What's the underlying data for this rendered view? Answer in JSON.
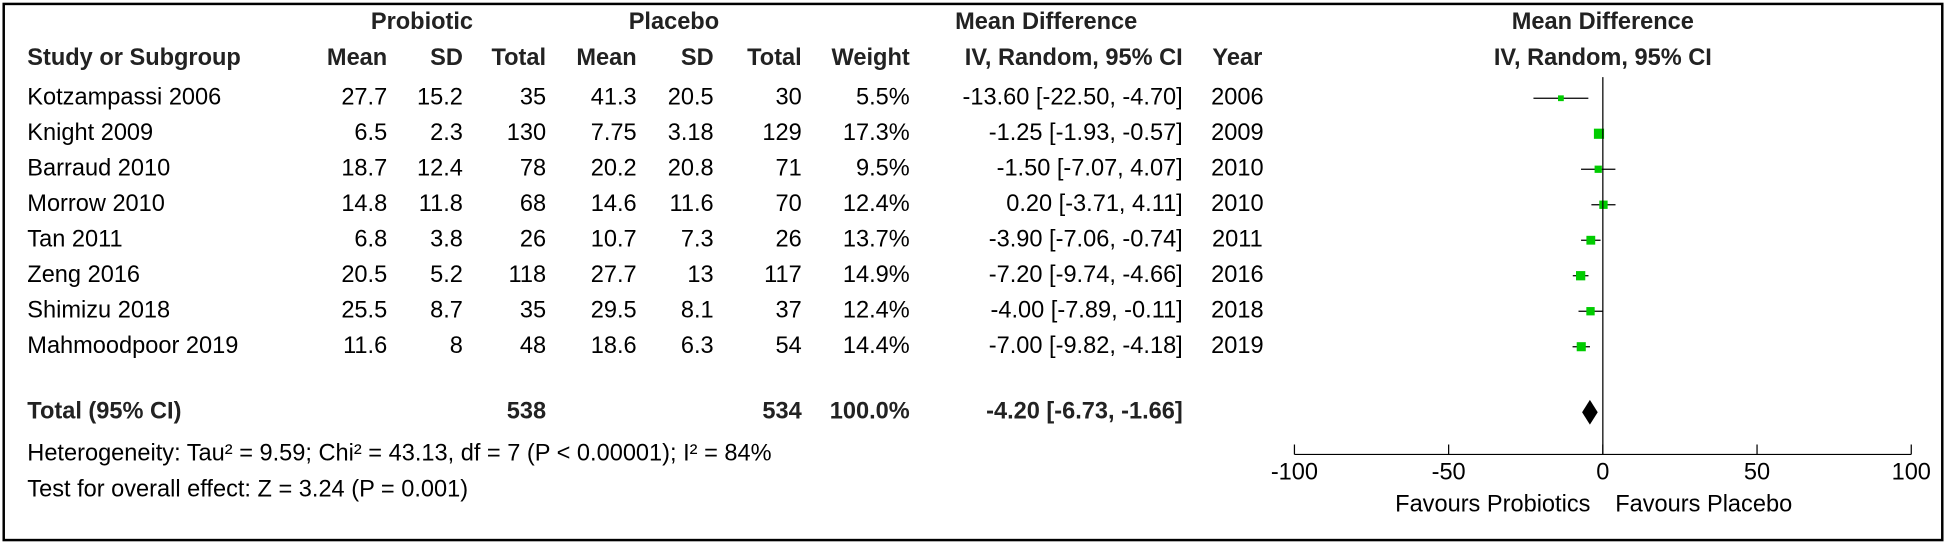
{
  "chart_data": {
    "type": "forest",
    "group_headers": [
      "Probiotic",
      "Placebo",
      "Mean Difference",
      "Mean Difference"
    ],
    "columns": [
      "Study or Subgroup",
      "Mean",
      "SD",
      "Total",
      "Mean",
      "SD",
      "Total",
      "Weight",
      "IV, Random, 95% CI",
      "Year",
      "IV, Random, 95% CI"
    ],
    "studies": [
      {
        "study": "Kotzampassi 2006",
        "probiotic": [
          27.7,
          15.2,
          35
        ],
        "placebo": [
          41.3,
          20.5,
          30
        ],
        "weight": 5.5,
        "weight_label": "5.5%",
        "md": -13.6,
        "ci": [
          -22.5,
          -4.7
        ],
        "md_label": "-13.60 [-22.50, -4.70]",
        "year": 2006
      },
      {
        "study": "Knight 2009",
        "probiotic": [
          6.5,
          2.3,
          130
        ],
        "placebo": [
          7.75,
          3.18,
          129
        ],
        "weight": 17.3,
        "weight_label": "17.3%",
        "md": -1.25,
        "ci": [
          -1.93,
          -0.57
        ],
        "md_label": "-1.25 [-1.93, -0.57]",
        "year": 2009
      },
      {
        "study": "Barraud 2010",
        "probiotic": [
          18.7,
          12.4,
          78
        ],
        "placebo": [
          20.2,
          20.8,
          71
        ],
        "weight": 9.5,
        "weight_label": "9.5%",
        "md": -1.5,
        "ci": [
          -7.07,
          4.07
        ],
        "md_label": "-1.50 [-7.07, 4.07]",
        "year": 2010
      },
      {
        "study": "Morrow  2010",
        "probiotic": [
          14.8,
          11.8,
          68
        ],
        "placebo": [
          14.6,
          11.6,
          70
        ],
        "weight": 12.4,
        "weight_label": "12.4%",
        "md": 0.2,
        "ci": [
          -3.71,
          4.11
        ],
        "md_label": "0.20 [-3.71, 4.11]",
        "year": 2010
      },
      {
        "study": "Tan 2011",
        "probiotic": [
          6.8,
          3.8,
          26
        ],
        "placebo": [
          10.7,
          7.3,
          26
        ],
        "weight": 13.7,
        "weight_label": "13.7%",
        "md": -3.9,
        "ci": [
          -7.06,
          -0.74
        ],
        "md_label": "-3.90 [-7.06, -0.74]",
        "year": 2011
      },
      {
        "study": "Zeng 2016",
        "probiotic": [
          20.5,
          5.2,
          118
        ],
        "placebo": [
          27.7,
          13,
          117
        ],
        "weight": 14.9,
        "weight_label": "14.9%",
        "md": -7.2,
        "ci": [
          -9.74,
          -4.66
        ],
        "md_label": "-7.20 [-9.74, -4.66]",
        "year": 2016
      },
      {
        "study": "Shimizu 2018",
        "probiotic": [
          25.5,
          8.7,
          35
        ],
        "placebo": [
          29.5,
          8.1,
          37
        ],
        "weight": 12.4,
        "weight_label": "12.4%",
        "md": -4.0,
        "ci": [
          -7.89,
          -0.11
        ],
        "md_label": "-4.00 [-7.89, -0.11]",
        "year": 2018
      },
      {
        "study": "Mahmoodpoor 2019",
        "probiotic": [
          11.6,
          8,
          48
        ],
        "placebo": [
          18.6,
          6.3,
          54
        ],
        "weight": 14.4,
        "weight_label": "14.4%",
        "md": -7.0,
        "ci": [
          -9.82,
          -4.18
        ],
        "md_label": "-7.00 [-9.82, -4.18]",
        "year": 2019
      }
    ],
    "total": {
      "label": "Total (95% CI)",
      "probiotic_total": 538,
      "placebo_total": 534,
      "weight": 100,
      "weight_label": "100.0%",
      "md": -4.2,
      "ci": [
        -6.73,
        -1.66
      ],
      "md_label": "-4.20 [-6.73, -1.66]"
    },
    "heterogeneity": "Heterogeneity: Tau² = 9.59; Chi² = 43.13, df = 7 (P < 0.00001); I² = 84%",
    "overall_effect": "Test for overall effect: Z = 3.24 (P = 0.001)",
    "xlim": [
      -100,
      100
    ],
    "xticks": [
      -100,
      -50,
      0,
      50,
      100
    ],
    "favours_left": "Favours Probiotics",
    "favours_right": "Favours Placebo",
    "color": "#00cc00",
    "total_color": "#000000"
  }
}
